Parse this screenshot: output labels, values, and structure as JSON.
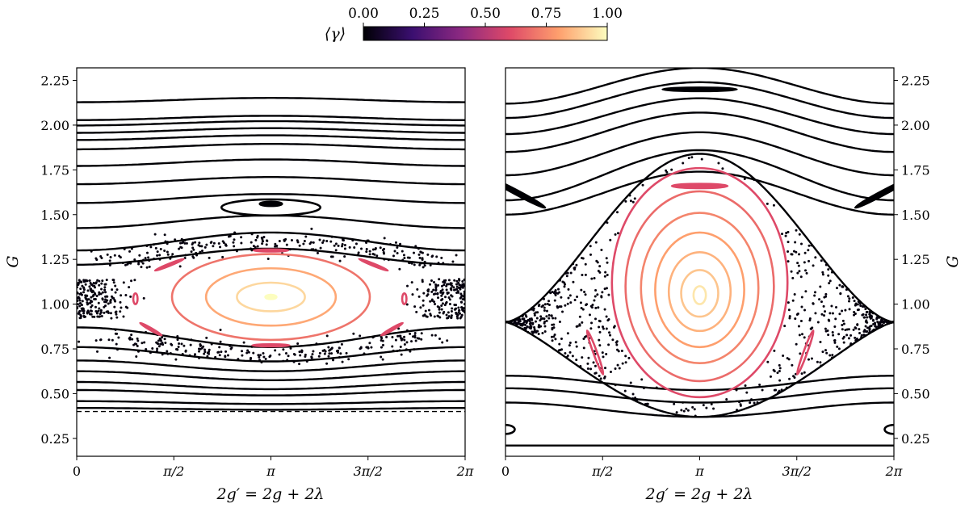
{
  "colorbar": {
    "label": "⟨γ⟩",
    "ticks": [
      "0.00",
      "0.25",
      "0.50",
      "0.75",
      "1.00"
    ],
    "range": [
      0,
      1
    ],
    "colormap": "magma",
    "colors": [
      "#000004",
      "#3b0f70",
      "#8c2981",
      "#de4968",
      "#fe9f6d",
      "#fcfdbf"
    ]
  },
  "chart_data": [
    {
      "type": "scatter",
      "panel": "left",
      "xlabel": "2g′ = 2g + 2λ",
      "ylabel": "G",
      "xlim": [
        0,
        6.2832
      ],
      "ylim": [
        0.15,
        2.32
      ],
      "xticks": [
        {
          "value": 0,
          "label": "0"
        },
        {
          "value": 1.5708,
          "label": "π/2"
        },
        {
          "value": 3.1416,
          "label": "π"
        },
        {
          "value": 4.7124,
          "label": "3π/2"
        },
        {
          "value": 6.2832,
          "label": "2π"
        }
      ],
      "yticks": [
        "0.25",
        "0.50",
        "0.75",
        "1.00",
        "1.25",
        "1.50",
        "1.75",
        "2.00",
        "2.25"
      ],
      "circulating_orbits": [
        {
          "base": 2.14,
          "amp": 0.012,
          "gamma": 0
        },
        {
          "base": 2.04,
          "amp": 0.012,
          "gamma": 0
        },
        {
          "base": 2.01,
          "amp": 0.012,
          "gamma": 0
        },
        {
          "base": 1.97,
          "amp": 0.013,
          "gamma": 0
        },
        {
          "base": 1.93,
          "amp": 0.013,
          "gamma": 0
        },
        {
          "base": 1.88,
          "amp": 0.015,
          "gamma": 0
        },
        {
          "base": 1.79,
          "amp": 0.018,
          "gamma": 0
        },
        {
          "base": 1.69,
          "amp": 0.02,
          "gamma": 0
        },
        {
          "base": 1.59,
          "amp": 0.025,
          "gamma": 0
        },
        {
          "base": 1.46,
          "amp": 0.035,
          "gamma": 0
        },
        {
          "base": 1.35,
          "amp": 0.05,
          "gamma": 0
        },
        {
          "base": 1.265,
          "amp": 0.045,
          "gamma": 0
        },
        {
          "base": 0.815,
          "amp": -0.055,
          "gamma": 0
        },
        {
          "base": 0.72,
          "amp": -0.04,
          "gamma": 0
        },
        {
          "base": 0.655,
          "amp": -0.03,
          "gamma": 0
        },
        {
          "base": 0.6,
          "amp": -0.025,
          "gamma": 0
        },
        {
          "base": 0.545,
          "amp": -0.02,
          "gamma": 0
        },
        {
          "base": 0.505,
          "amp": -0.015,
          "gamma": 0
        },
        {
          "base": 0.45,
          "amp": -0.008,
          "gamma": 0
        },
        {
          "base": 0.415,
          "amp": -0.005,
          "gamma": 0
        }
      ],
      "librating_orbits": [
        {
          "cx": 3.1416,
          "cy": 1.04,
          "rx": 0.09,
          "ry": 0.012,
          "gamma": 1.0
        },
        {
          "cx": 3.1416,
          "cy": 1.04,
          "rx": 0.55,
          "ry": 0.08,
          "gamma": 0.92
        },
        {
          "cx": 3.1416,
          "cy": 1.04,
          "rx": 1.05,
          "ry": 0.16,
          "gamma": 0.82
        },
        {
          "cx": 3.1416,
          "cy": 1.04,
          "rx": 1.6,
          "ry": 0.24,
          "gamma": 0.7
        },
        {
          "cx": 3.1416,
          "cy": 1.56,
          "rx": 0.18,
          "ry": 0.012,
          "gamma": 0
        },
        {
          "cx": 3.1416,
          "cy": 1.54,
          "rx": 0.8,
          "ry": 0.045,
          "gamma": 0
        }
      ],
      "islands": [
        {
          "cx": 3.1416,
          "cy": 1.3,
          "rx": 0.28,
          "ry": 0.006,
          "gamma": 0.6
        },
        {
          "cx": 3.1416,
          "cy": 0.77,
          "rx": 0.3,
          "ry": 0.006,
          "gamma": 0.6
        },
        {
          "cx": 1.5,
          "cy": 1.22,
          "rx": 0.25,
          "ry": 0.006,
          "tilt": -22,
          "gamma": 0.6
        },
        {
          "cx": 4.8,
          "cy": 1.22,
          "rx": 0.25,
          "ry": 0.006,
          "tilt": 22,
          "gamma": 0.6
        },
        {
          "cx": 1.2,
          "cy": 0.86,
          "rx": 0.2,
          "ry": 0.006,
          "tilt": 30,
          "gamma": 0.6
        },
        {
          "cx": 5.1,
          "cy": 0.86,
          "rx": 0.2,
          "ry": 0.006,
          "tilt": -30,
          "gamma": 0.6
        },
        {
          "cx": 0.95,
          "cy": 1.03,
          "rx": 0.035,
          "ry": 0.03,
          "gamma": 0.6
        },
        {
          "cx": 5.3,
          "cy": 1.03,
          "rx": 0.035,
          "ry": 0.03,
          "gamma": 0.6
        }
      ],
      "dashed_line_y": 0.4,
      "chaos_band": {
        "cx": 3.1416,
        "cy": 1.03,
        "rx": 3.2,
        "ry": 0.31,
        "width": 0.03,
        "gamma": 0.02
      }
    },
    {
      "type": "scatter",
      "panel": "right",
      "xlabel": "2g′ = 2g + 2λ",
      "ylabel": "G",
      "xlim": [
        0,
        6.2832
      ],
      "ylim": [
        0.15,
        2.32
      ],
      "xticks": [
        {
          "value": 0,
          "label": "0"
        },
        {
          "value": 1.5708,
          "label": "π/2"
        },
        {
          "value": 3.1416,
          "label": "π"
        },
        {
          "value": 4.7124,
          "label": "3π/2"
        },
        {
          "value": 6.2832,
          "label": "2π"
        }
      ],
      "yticks": [
        "0.25",
        "0.50",
        "0.75",
        "1.00",
        "1.25",
        "1.50",
        "1.75",
        "2.00",
        "2.25"
      ],
      "circulating_orbits": [
        {
          "base": 2.22,
          "amp": 0.1,
          "gamma": 0
        },
        {
          "base": 2.14,
          "amp": 0.1,
          "gamma": 0
        },
        {
          "base": 2.05,
          "amp": 0.1,
          "gamma": 0
        },
        {
          "base": 1.96,
          "amp": 0.11,
          "gamma": 0
        },
        {
          "base": 1.84,
          "amp": 0.12,
          "gamma": 0
        },
        {
          "base": 1.72,
          "amp": 0.14,
          "gamma": 0
        },
        {
          "base": 1.62,
          "amp": 0.12,
          "gamma": 0
        },
        {
          "base": 0.56,
          "amp": -0.04,
          "gamma": 0
        },
        {
          "base": 0.49,
          "amp": -0.04,
          "gamma": 0
        },
        {
          "base": 0.41,
          "amp": -0.04,
          "gamma": 0
        },
        {
          "base": 0.21,
          "amp": 0.0,
          "gamma": 0
        }
      ],
      "separatrix": {
        "top": 1.84,
        "bottom": 0.37,
        "edge": 0.9,
        "gamma": 0
      },
      "librating_orbits": [
        {
          "cx": 3.1416,
          "cy": 1.05,
          "rx": 0.1,
          "ry": 0.05,
          "gamma": 0.95
        },
        {
          "cx": 3.1416,
          "cy": 1.06,
          "rx": 0.3,
          "ry": 0.13,
          "gamma": 0.88
        },
        {
          "cx": 3.1416,
          "cy": 1.07,
          "rx": 0.5,
          "ry": 0.22,
          "gamma": 0.84
        },
        {
          "cx": 3.1416,
          "cy": 1.08,
          "rx": 0.72,
          "ry": 0.32,
          "gamma": 0.8
        },
        {
          "cx": 3.1416,
          "cy": 1.09,
          "rx": 0.95,
          "ry": 0.42,
          "gamma": 0.74
        },
        {
          "cx": 3.1416,
          "cy": 1.1,
          "rx": 1.2,
          "ry": 0.53,
          "gamma": 0.68
        },
        {
          "cx": 3.1416,
          "cy": 1.12,
          "rx": 1.42,
          "ry": 0.64,
          "gamma": 0.6
        }
      ],
      "islands": [
        {
          "cx": 3.1416,
          "cy": 1.66,
          "rx": 0.45,
          "ry": 0.012,
          "gamma": 0.6
        },
        {
          "cx": 1.45,
          "cy": 0.73,
          "rx": 0.03,
          "ry": 0.13,
          "tilt": -20,
          "gamma": 0.6
        },
        {
          "cx": 4.85,
          "cy": 0.73,
          "rx": 0.03,
          "ry": 0.13,
          "tilt": 20,
          "gamma": 0.6
        },
        {
          "cx": 3.1416,
          "cy": 2.2,
          "rx": 0.6,
          "ry": 0.01,
          "gamma": 0
        },
        {
          "cx": 0.2,
          "cy": 1.62,
          "rx": 0.5,
          "ry": 0.012,
          "tilt": 28,
          "gamma": 0
        },
        {
          "cx": 6.1,
          "cy": 1.62,
          "rx": 0.5,
          "ry": 0.012,
          "tilt": -28,
          "gamma": 0
        },
        {
          "cx": 0.0,
          "cy": 0.3,
          "rx": 0.15,
          "ry": 0.025,
          "gamma": 0
        },
        {
          "cx": 6.2832,
          "cy": 0.3,
          "rx": 0.15,
          "ry": 0.025,
          "gamma": 0
        }
      ],
      "chaos_region": {
        "gamma": 0.02,
        "count": 1100
      }
    }
  ]
}
